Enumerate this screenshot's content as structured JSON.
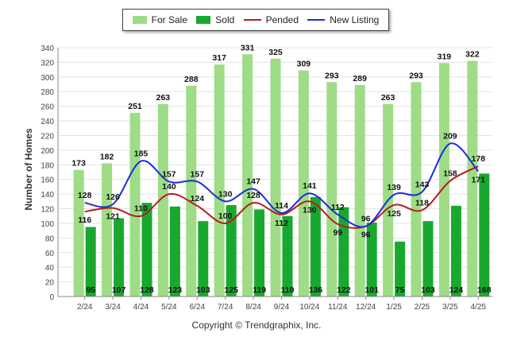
{
  "legend": {
    "for_sale": "For Sale",
    "sold": "Sold",
    "pended": "Pended",
    "new_listing": "New Listing"
  },
  "copyright": "Copyright © Trendgraphix, Inc.",
  "colors": {
    "for_sale": "#9edc86",
    "sold": "#19a82f",
    "pended": "#b71c1c",
    "new_listing": "#1a2fd6"
  },
  "chart_data": {
    "type": "bar",
    "ylabel": "Number of Homes",
    "xlabel": "",
    "ylim": [
      0,
      340
    ],
    "ytick_step": 20,
    "grid": true,
    "legend_position": "top-center",
    "categories": [
      "2/24",
      "3/24",
      "4/24",
      "5/24",
      "6/24",
      "7/24",
      "8/24",
      "9/24",
      "10/24",
      "11/24",
      "12/24",
      "1/25",
      "2/25",
      "3/25",
      "4/25"
    ],
    "series": [
      {
        "name": "For Sale",
        "kind": "bar",
        "values": [
          173,
          182,
          251,
          263,
          288,
          317,
          331,
          325,
          309,
          293,
          289,
          263,
          293,
          319,
          322
        ]
      },
      {
        "name": "Sold",
        "kind": "bar",
        "values": [
          95,
          107,
          128,
          123,
          103,
          125,
          119,
          110,
          136,
          122,
          101,
          75,
          103,
          124,
          168
        ]
      },
      {
        "name": "Pended",
        "kind": "line",
        "values": [
          116,
          121,
          110,
          140,
          124,
          100,
          128,
          112,
          130,
          99,
          96,
          125,
          118,
          158,
          178
        ]
      },
      {
        "name": "New Listing",
        "kind": "line",
        "values": [
          128,
          126,
          185,
          157,
          157,
          130,
          147,
          114,
          141,
          112,
          96,
          139,
          143,
          209,
          171
        ]
      }
    ]
  }
}
